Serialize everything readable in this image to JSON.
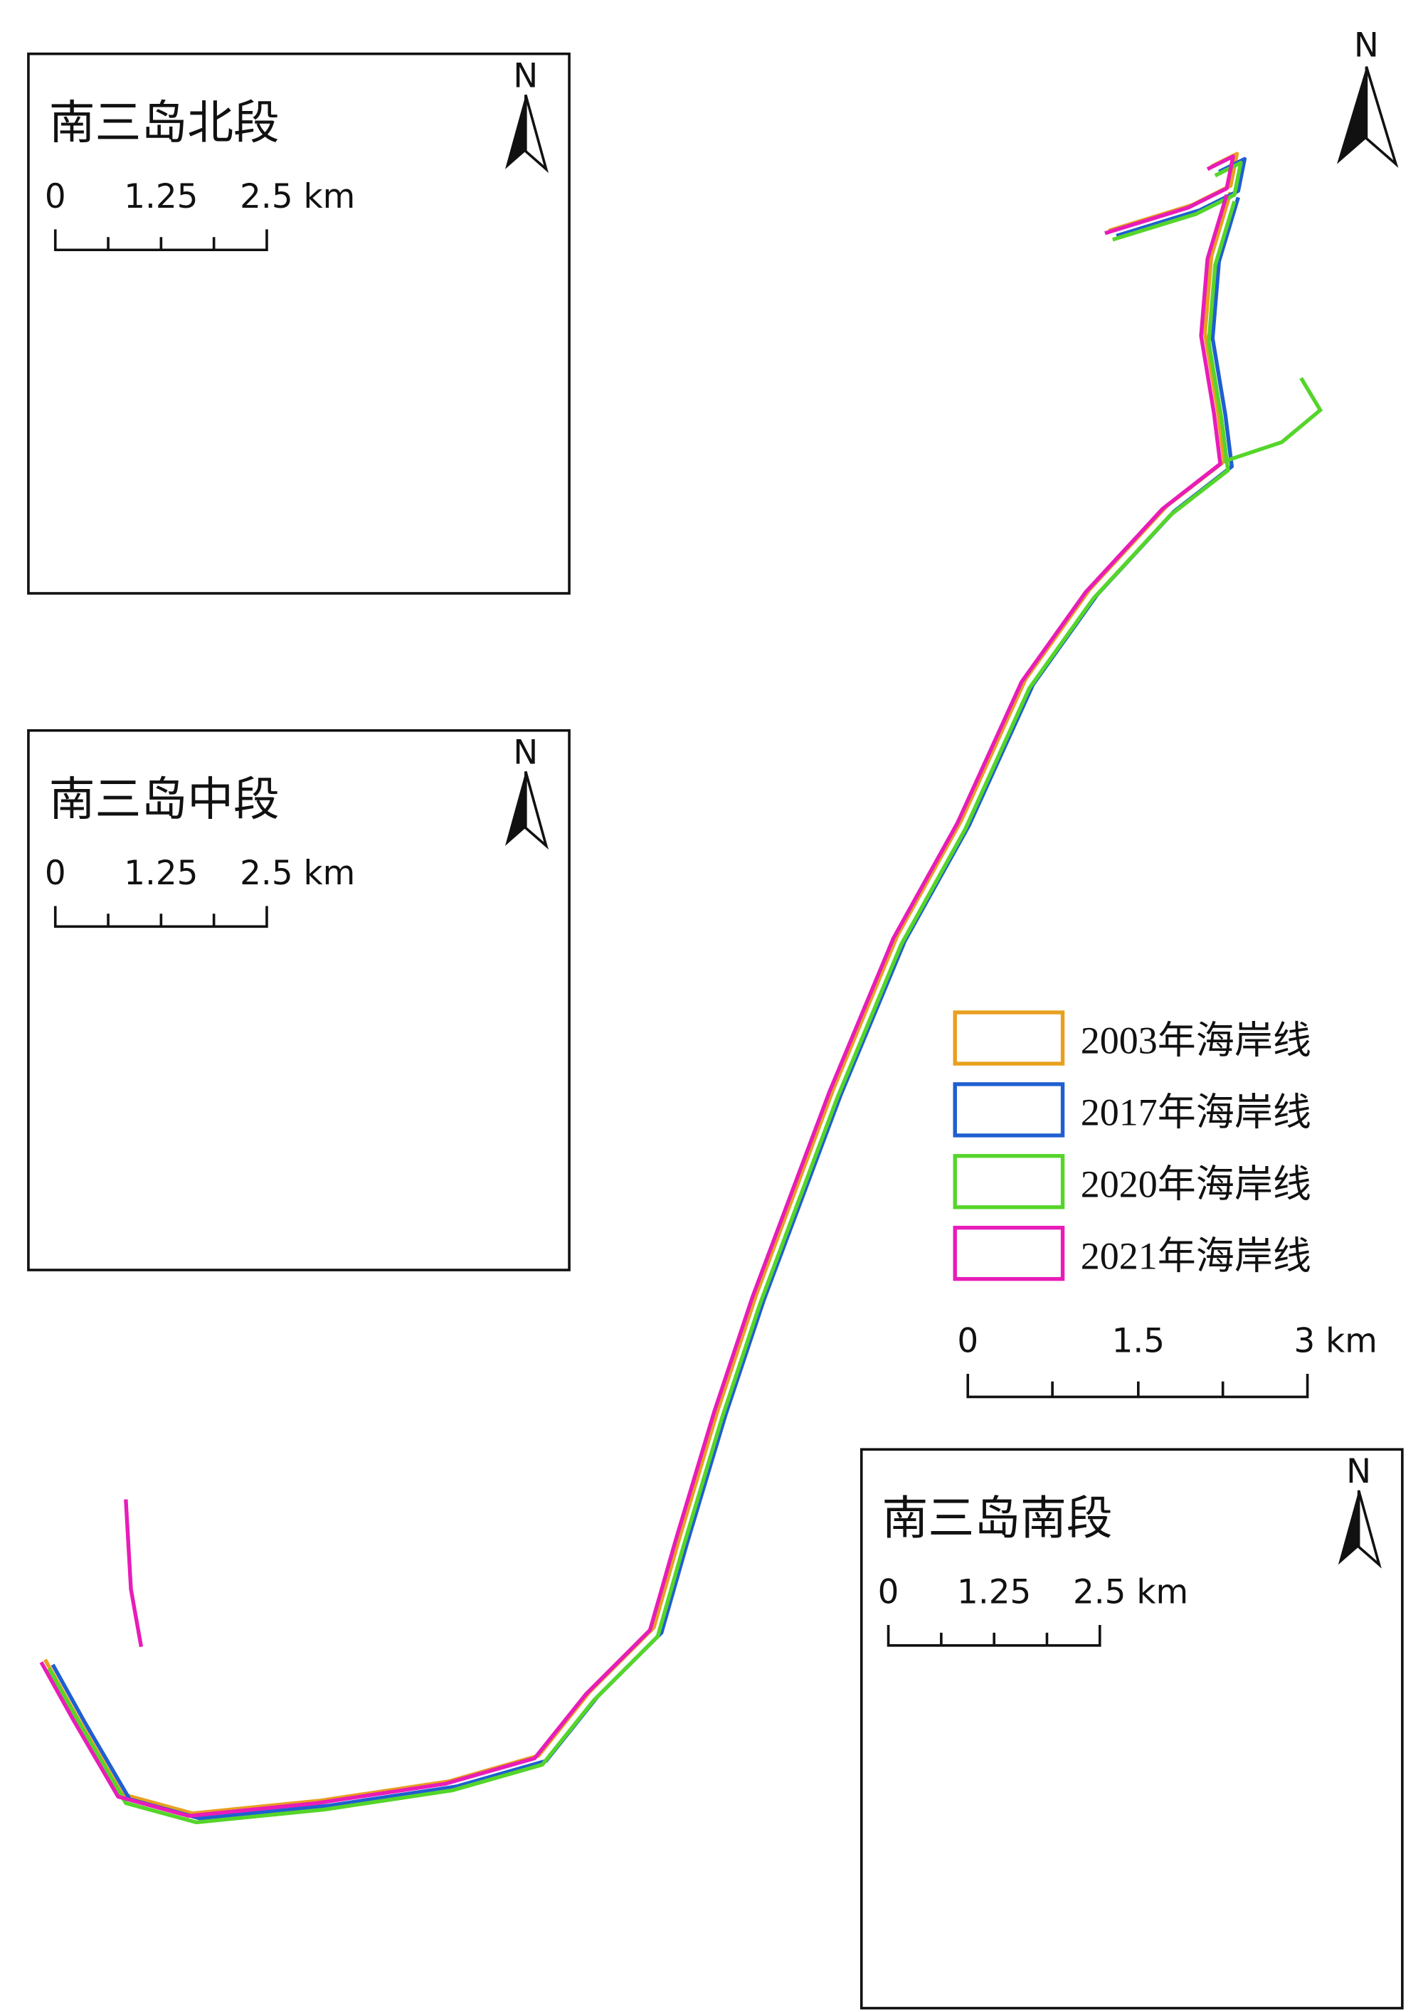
{
  "north": "N",
  "legend": [
    {
      "label": "2003年海岸线",
      "color": "#e8a020"
    },
    {
      "label": "2017年海岸线",
      "color": "#1f5fd0"
    },
    {
      "label": "2020年海岸线",
      "color": "#55d52a"
    },
    {
      "label": "2021年海岸线",
      "color": "#e81cb8"
    }
  ],
  "scale_bar": {
    "labels": [
      "0",
      "1.5",
      "3 km"
    ]
  },
  "insets": [
    {
      "title": "南三岛北段",
      "north": "N",
      "scale_labels": [
        "0",
        "1.25",
        "2.5 km"
      ]
    },
    {
      "title": "南三岛中段",
      "north": "N",
      "scale_labels": [
        "0",
        "1.25",
        "2.5 km"
      ]
    },
    {
      "title": "南三岛南段",
      "north": "N",
      "scale_labels": [
        "0",
        "1.25",
        "2.5 km"
      ]
    }
  ]
}
